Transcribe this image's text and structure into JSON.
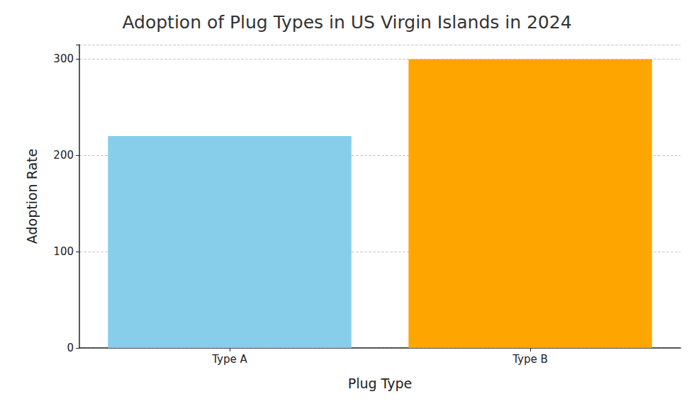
{
  "chart_data": {
    "type": "bar",
    "title": "Adoption of Plug Types in US Virgin Islands in 2024",
    "x_label": "Plug Type",
    "y_label": "Adoption Rate",
    "categories": [
      "Type A",
      "Type B"
    ],
    "values": [
      220,
      300
    ],
    "colors": [
      "#87ceeb",
      "#ffa500"
    ],
    "ylim": [
      0,
      315
    ],
    "yticks": [
      0,
      100,
      200,
      300
    ],
    "grid": true
  }
}
